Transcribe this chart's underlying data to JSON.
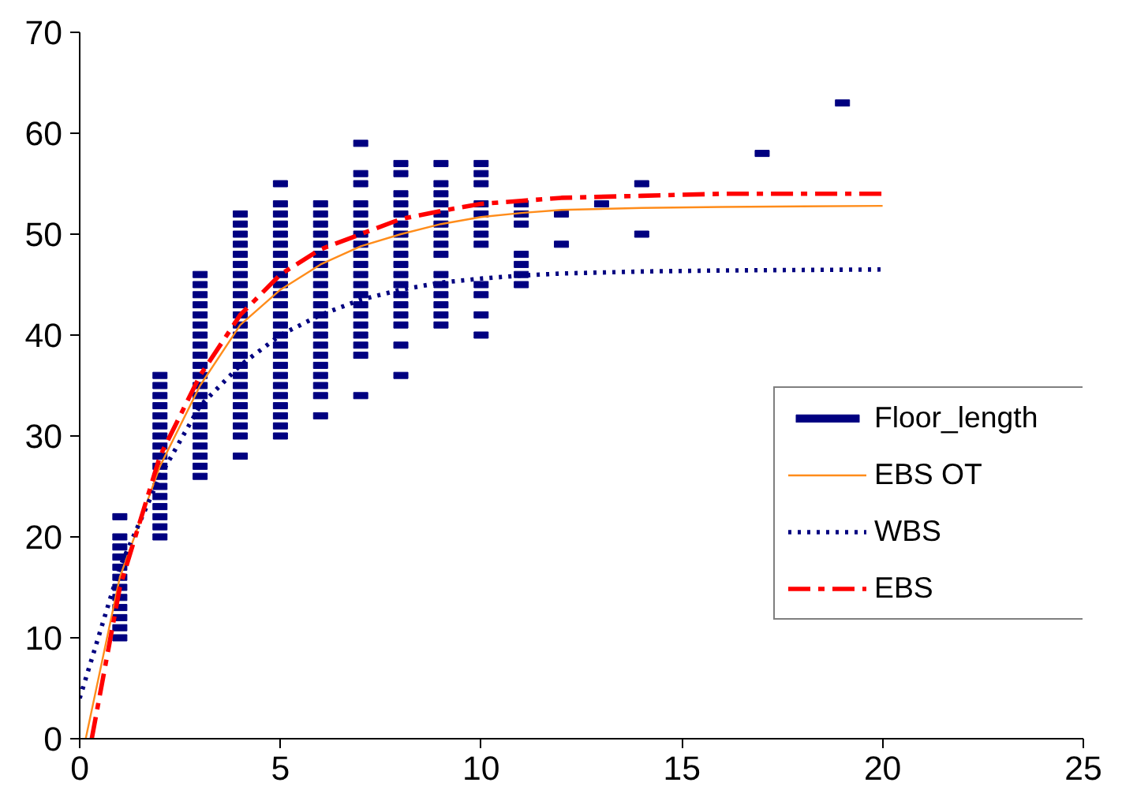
{
  "chart_data": {
    "type": "scatter",
    "xlim": [
      0,
      25
    ],
    "ylim": [
      0,
      70
    ],
    "xticks": [
      0,
      5,
      10,
      15,
      20,
      25
    ],
    "yticks": [
      0,
      10,
      20,
      30,
      40,
      50,
      60,
      70
    ],
    "grid": false,
    "legend": "right",
    "series": [
      {
        "name": "Floor_length",
        "marker": "square",
        "color": "#000080",
        "x": [
          1,
          1,
          1,
          1,
          1,
          1,
          1,
          1,
          1,
          1,
          1,
          1,
          2,
          2,
          2,
          2,
          2,
          2,
          2,
          2,
          2,
          2,
          2,
          2,
          2,
          2,
          2,
          2,
          2,
          3,
          3,
          3,
          3,
          3,
          3,
          3,
          3,
          3,
          3,
          3,
          3,
          3,
          3,
          3,
          3,
          3,
          3,
          3,
          3,
          3,
          4,
          4,
          4,
          4,
          4,
          4,
          4,
          4,
          4,
          4,
          4,
          4,
          4,
          4,
          4,
          4,
          4,
          4,
          4,
          4,
          4,
          4,
          4,
          4,
          5,
          5,
          5,
          5,
          5,
          5,
          5,
          5,
          5,
          5,
          5,
          5,
          5,
          5,
          5,
          5,
          5,
          5,
          5,
          5,
          5,
          5,
          5,
          5,
          5,
          6,
          6,
          6,
          6,
          6,
          6,
          6,
          6,
          6,
          6,
          6,
          6,
          6,
          6,
          6,
          6,
          6,
          6,
          6,
          6,
          6,
          7,
          7,
          7,
          7,
          7,
          7,
          7,
          7,
          7,
          7,
          7,
          7,
          7,
          7,
          7,
          7,
          7,
          7,
          7,
          7,
          8,
          8,
          8,
          8,
          8,
          8,
          8,
          8,
          8,
          8,
          8,
          8,
          8,
          8,
          8,
          8,
          8,
          8,
          9,
          9,
          9,
          9,
          9,
          9,
          9,
          9,
          9,
          9,
          9,
          9,
          9,
          9,
          9,
          10,
          10,
          10,
          10,
          10,
          10,
          10,
          10,
          10,
          10,
          10,
          10,
          11,
          11,
          11,
          11,
          11,
          11,
          11,
          12,
          12,
          13,
          14,
          14,
          17,
          19
        ],
        "values": [
          10,
          11,
          12,
          13,
          14,
          15,
          16,
          17,
          18,
          19,
          20,
          22,
          20,
          21,
          22,
          23,
          24,
          25,
          26,
          27,
          28,
          29,
          30,
          31,
          32,
          33,
          34,
          35,
          36,
          26,
          27,
          28,
          29,
          30,
          31,
          32,
          33,
          34,
          35,
          36,
          37,
          38,
          39,
          40,
          41,
          42,
          43,
          44,
          45,
          46,
          28,
          30,
          31,
          32,
          33,
          34,
          35,
          36,
          37,
          38,
          39,
          40,
          41,
          42,
          43,
          44,
          45,
          46,
          47,
          48,
          49,
          50,
          51,
          52,
          30,
          31,
          32,
          33,
          34,
          35,
          36,
          37,
          38,
          39,
          40,
          41,
          42,
          43,
          44,
          45,
          46,
          47,
          48,
          49,
          50,
          51,
          52,
          53,
          55,
          32,
          34,
          35,
          36,
          37,
          38,
          39,
          40,
          41,
          42,
          43,
          44,
          45,
          46,
          47,
          48,
          49,
          50,
          51,
          52,
          53,
          34,
          38,
          39,
          40,
          41,
          42,
          43,
          44,
          45,
          46,
          47,
          48,
          49,
          50,
          51,
          52,
          53,
          55,
          56,
          59,
          36,
          39,
          41,
          42,
          43,
          44,
          45,
          46,
          47,
          48,
          49,
          50,
          51,
          52,
          53,
          54,
          56,
          57,
          41,
          42,
          43,
          44,
          45,
          46,
          48,
          49,
          50,
          51,
          52,
          53,
          54,
          55,
          57,
          40,
          42,
          44,
          45,
          49,
          50,
          51,
          52,
          53,
          55,
          56,
          57,
          45,
          46,
          47,
          48,
          51,
          52,
          53,
          49,
          52,
          53,
          50,
          55,
          58,
          63
        ]
      },
      {
        "name": "EBS OT",
        "type": "line",
        "line_style": "solid",
        "color": "#ff8c1a",
        "x": [
          0.15,
          1,
          2,
          3,
          4,
          5,
          6,
          7,
          8,
          9,
          10,
          11,
          12,
          14,
          16,
          20
        ],
        "values": [
          0,
          16,
          27,
          35,
          41,
          44.5,
          47,
          48.8,
          50,
          51,
          51.7,
          52.1,
          52.4,
          52.6,
          52.7,
          52.8
        ]
      },
      {
        "name": "WBS",
        "type": "line",
        "line_style": "dotted",
        "color": "#000080",
        "x": [
          0,
          1,
          2,
          3,
          4,
          5,
          6,
          7,
          8,
          9,
          10,
          11,
          12,
          14,
          16,
          20
        ],
        "values": [
          4,
          17,
          26,
          33,
          37,
          40,
          42,
          43.5,
          44.5,
          45.2,
          45.6,
          45.9,
          46.1,
          46.3,
          46.4,
          46.5
        ]
      },
      {
        "name": "EBS",
        "type": "line",
        "line_style": "dashdot",
        "color": "#ff0000",
        "x": [
          0.3,
          1,
          2,
          3,
          4,
          5,
          6,
          7,
          8,
          9,
          10,
          11,
          12,
          14,
          16,
          20
        ],
        "values": [
          0,
          15,
          28,
          36,
          42,
          46,
          48.5,
          50,
          51.5,
          52.3,
          53,
          53.3,
          53.6,
          53.8,
          54,
          54
        ]
      }
    ]
  }
}
